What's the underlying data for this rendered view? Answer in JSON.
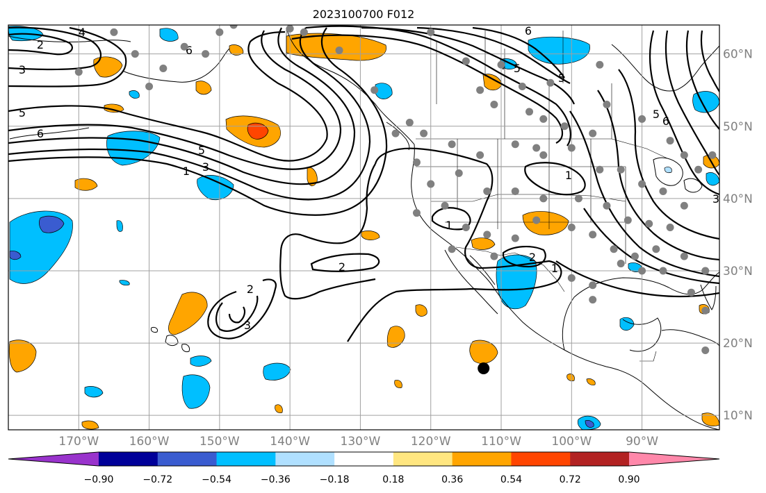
{
  "title": "2023100700 F012",
  "map": {
    "lon_range": [
      -180,
      -79
    ],
    "lat_range": [
      8,
      64
    ],
    "lon_ticks": [
      {
        "value": -170,
        "label": "170°W"
      },
      {
        "value": -160,
        "label": "160°W"
      },
      {
        "value": -150,
        "label": "150°W"
      },
      {
        "value": -140,
        "label": "140°W"
      },
      {
        "value": -130,
        "label": "130°W"
      },
      {
        "value": -120,
        "label": "120°W"
      },
      {
        "value": -110,
        "label": "110°W"
      },
      {
        "value": -100,
        "label": "100°W"
      },
      {
        "value": -90,
        "label": "90°W"
      }
    ],
    "lat_ticks": [
      {
        "value": 60,
        "label": "60°N"
      },
      {
        "value": 50,
        "label": "50°N"
      },
      {
        "value": 40,
        "label": "40°N"
      },
      {
        "value": 30,
        "label": "30°N"
      },
      {
        "value": 20,
        "label": "20°N"
      },
      {
        "value": 10,
        "label": "10°N"
      }
    ],
    "gridlines": true
  },
  "colorbar": {
    "labels": [
      "−0.90",
      "−0.72",
      "−0.54",
      "−0.36",
      "−0.18",
      "0.18",
      "0.36",
      "0.54",
      "0.72",
      "0.90"
    ],
    "colors": [
      "#9933cc",
      "#000099",
      "#3a5cd0",
      "#00bfff",
      "#b0e0ff",
      "#ffffff",
      "#ffe680",
      "#ffa500",
      "#ff4500",
      "#b22222",
      "#ff88aa"
    ]
  },
  "fill_colors": {
    "neg1": "#00bfff",
    "neg2": "#3a5cd0",
    "negLight": "#b0e0ff",
    "pos1": "#ffa500",
    "pos2": "#ff4500",
    "posLight": "#ffe680"
  },
  "contour_labels": [
    {
      "text": "2"
    },
    {
      "text": "4"
    },
    {
      "text": "3"
    },
    {
      "text": "5"
    },
    {
      "text": "6"
    },
    {
      "text": "6"
    },
    {
      "text": "5"
    },
    {
      "text": "3"
    },
    {
      "text": "1"
    },
    {
      "text": "2"
    },
    {
      "text": "2"
    },
    {
      "text": "3"
    },
    {
      "text": "1"
    },
    {
      "text": "2"
    },
    {
      "text": "1"
    },
    {
      "text": "1"
    },
    {
      "text": "6"
    },
    {
      "text": "4"
    },
    {
      "text": "5"
    },
    {
      "text": "5"
    },
    {
      "text": "6"
    },
    {
      "text": "5"
    },
    {
      "text": "3"
    }
  ],
  "stations": [
    {
      "lon": -165,
      "lat": 63
    },
    {
      "lon": -162,
      "lat": 60
    },
    {
      "lon": -158,
      "lat": 58
    },
    {
      "lon": -140,
      "lat": 63.5
    },
    {
      "lon": -138,
      "lat": 63
    },
    {
      "lon": -133,
      "lat": 60.5
    },
    {
      "lon": -148,
      "lat": 64
    },
    {
      "lon": -155,
      "lat": 61
    },
    {
      "lon": -152,
      "lat": 60
    },
    {
      "lon": -128,
      "lat": 55
    },
    {
      "lon": -120,
      "lat": 63
    },
    {
      "lon": -115,
      "lat": 59
    },
    {
      "lon": -113,
      "lat": 55
    },
    {
      "lon": -111,
      "lat": 53
    },
    {
      "lon": -106,
      "lat": 52
    },
    {
      "lon": -104,
      "lat": 51
    },
    {
      "lon": -101,
      "lat": 50
    },
    {
      "lon": -97,
      "lat": 49
    },
    {
      "lon": -95,
      "lat": 53
    },
    {
      "lon": -90,
      "lat": 51
    },
    {
      "lon": -86,
      "lat": 48
    },
    {
      "lon": -84,
      "lat": 46
    },
    {
      "lon": -82,
      "lat": 44
    },
    {
      "lon": -80,
      "lat": 46
    },
    {
      "lon": -121,
      "lat": 49
    },
    {
      "lon": -117,
      "lat": 47.5
    },
    {
      "lon": -113,
      "lat": 46
    },
    {
      "lon": -108,
      "lat": 47.5
    },
    {
      "lon": -104,
      "lat": 46
    },
    {
      "lon": -100,
      "lat": 47
    },
    {
      "lon": -96,
      "lat": 44
    },
    {
      "lon": -93,
      "lat": 44
    },
    {
      "lon": -90,
      "lat": 42
    },
    {
      "lon": -87,
      "lat": 41
    },
    {
      "lon": -84,
      "lat": 39
    },
    {
      "lon": -122,
      "lat": 45
    },
    {
      "lon": -120,
      "lat": 42
    },
    {
      "lon": -116,
      "lat": 43.5
    },
    {
      "lon": -112,
      "lat": 41
    },
    {
      "lon": -108,
      "lat": 41
    },
    {
      "lon": -104,
      "lat": 40
    },
    {
      "lon": -99,
      "lat": 40
    },
    {
      "lon": -95,
      "lat": 39
    },
    {
      "lon": -92,
      "lat": 37
    },
    {
      "lon": -89,
      "lat": 36.5
    },
    {
      "lon": -86,
      "lat": 36
    },
    {
      "lon": -122,
      "lat": 38
    },
    {
      "lon": -118,
      "lat": 39
    },
    {
      "lon": -115,
      "lat": 36
    },
    {
      "lon": -112,
      "lat": 35
    },
    {
      "lon": -108,
      "lat": 34.5
    },
    {
      "lon": -105,
      "lat": 37
    },
    {
      "lon": -100,
      "lat": 36
    },
    {
      "lon": -97,
      "lat": 35
    },
    {
      "lon": -94,
      "lat": 33
    },
    {
      "lon": -91,
      "lat": 32
    },
    {
      "lon": -88,
      "lat": 33
    },
    {
      "lon": -84,
      "lat": 32
    },
    {
      "lon": -81,
      "lat": 30
    },
    {
      "lon": -97,
      "lat": 28
    },
    {
      "lon": -100,
      "lat": 29
    },
    {
      "lon": -93,
      "lat": 31
    },
    {
      "lon": -90,
      "lat": 30
    },
    {
      "lon": -87,
      "lat": 30
    },
    {
      "lon": -83,
      "lat": 27
    },
    {
      "lon": -81,
      "lat": 24.5
    },
    {
      "lon": -81,
      "lat": 19
    },
    {
      "lon": -117,
      "lat": 33
    },
    {
      "lon": -111,
      "lat": 32
    },
    {
      "lon": -97,
      "lat": 26
    },
    {
      "lon": -105,
      "lat": 47
    },
    {
      "lon": -125,
      "lat": 49
    },
    {
      "lon": -160,
      "lat": 55.5
    },
    {
      "lon": -170,
      "lat": 57.5
    },
    {
      "lon": -123,
      "lat": 50.5
    },
    {
      "lon": -107,
      "lat": 55.5
    },
    {
      "lon": -103,
      "lat": 56
    },
    {
      "lon": -96,
      "lat": 58.5
    },
    {
      "lon": -110,
      "lat": 58.5
    },
    {
      "lon": -150,
      "lat": 63
    }
  ],
  "black_marker": {
    "lon": -112.5,
    "lat": 16.5
  }
}
